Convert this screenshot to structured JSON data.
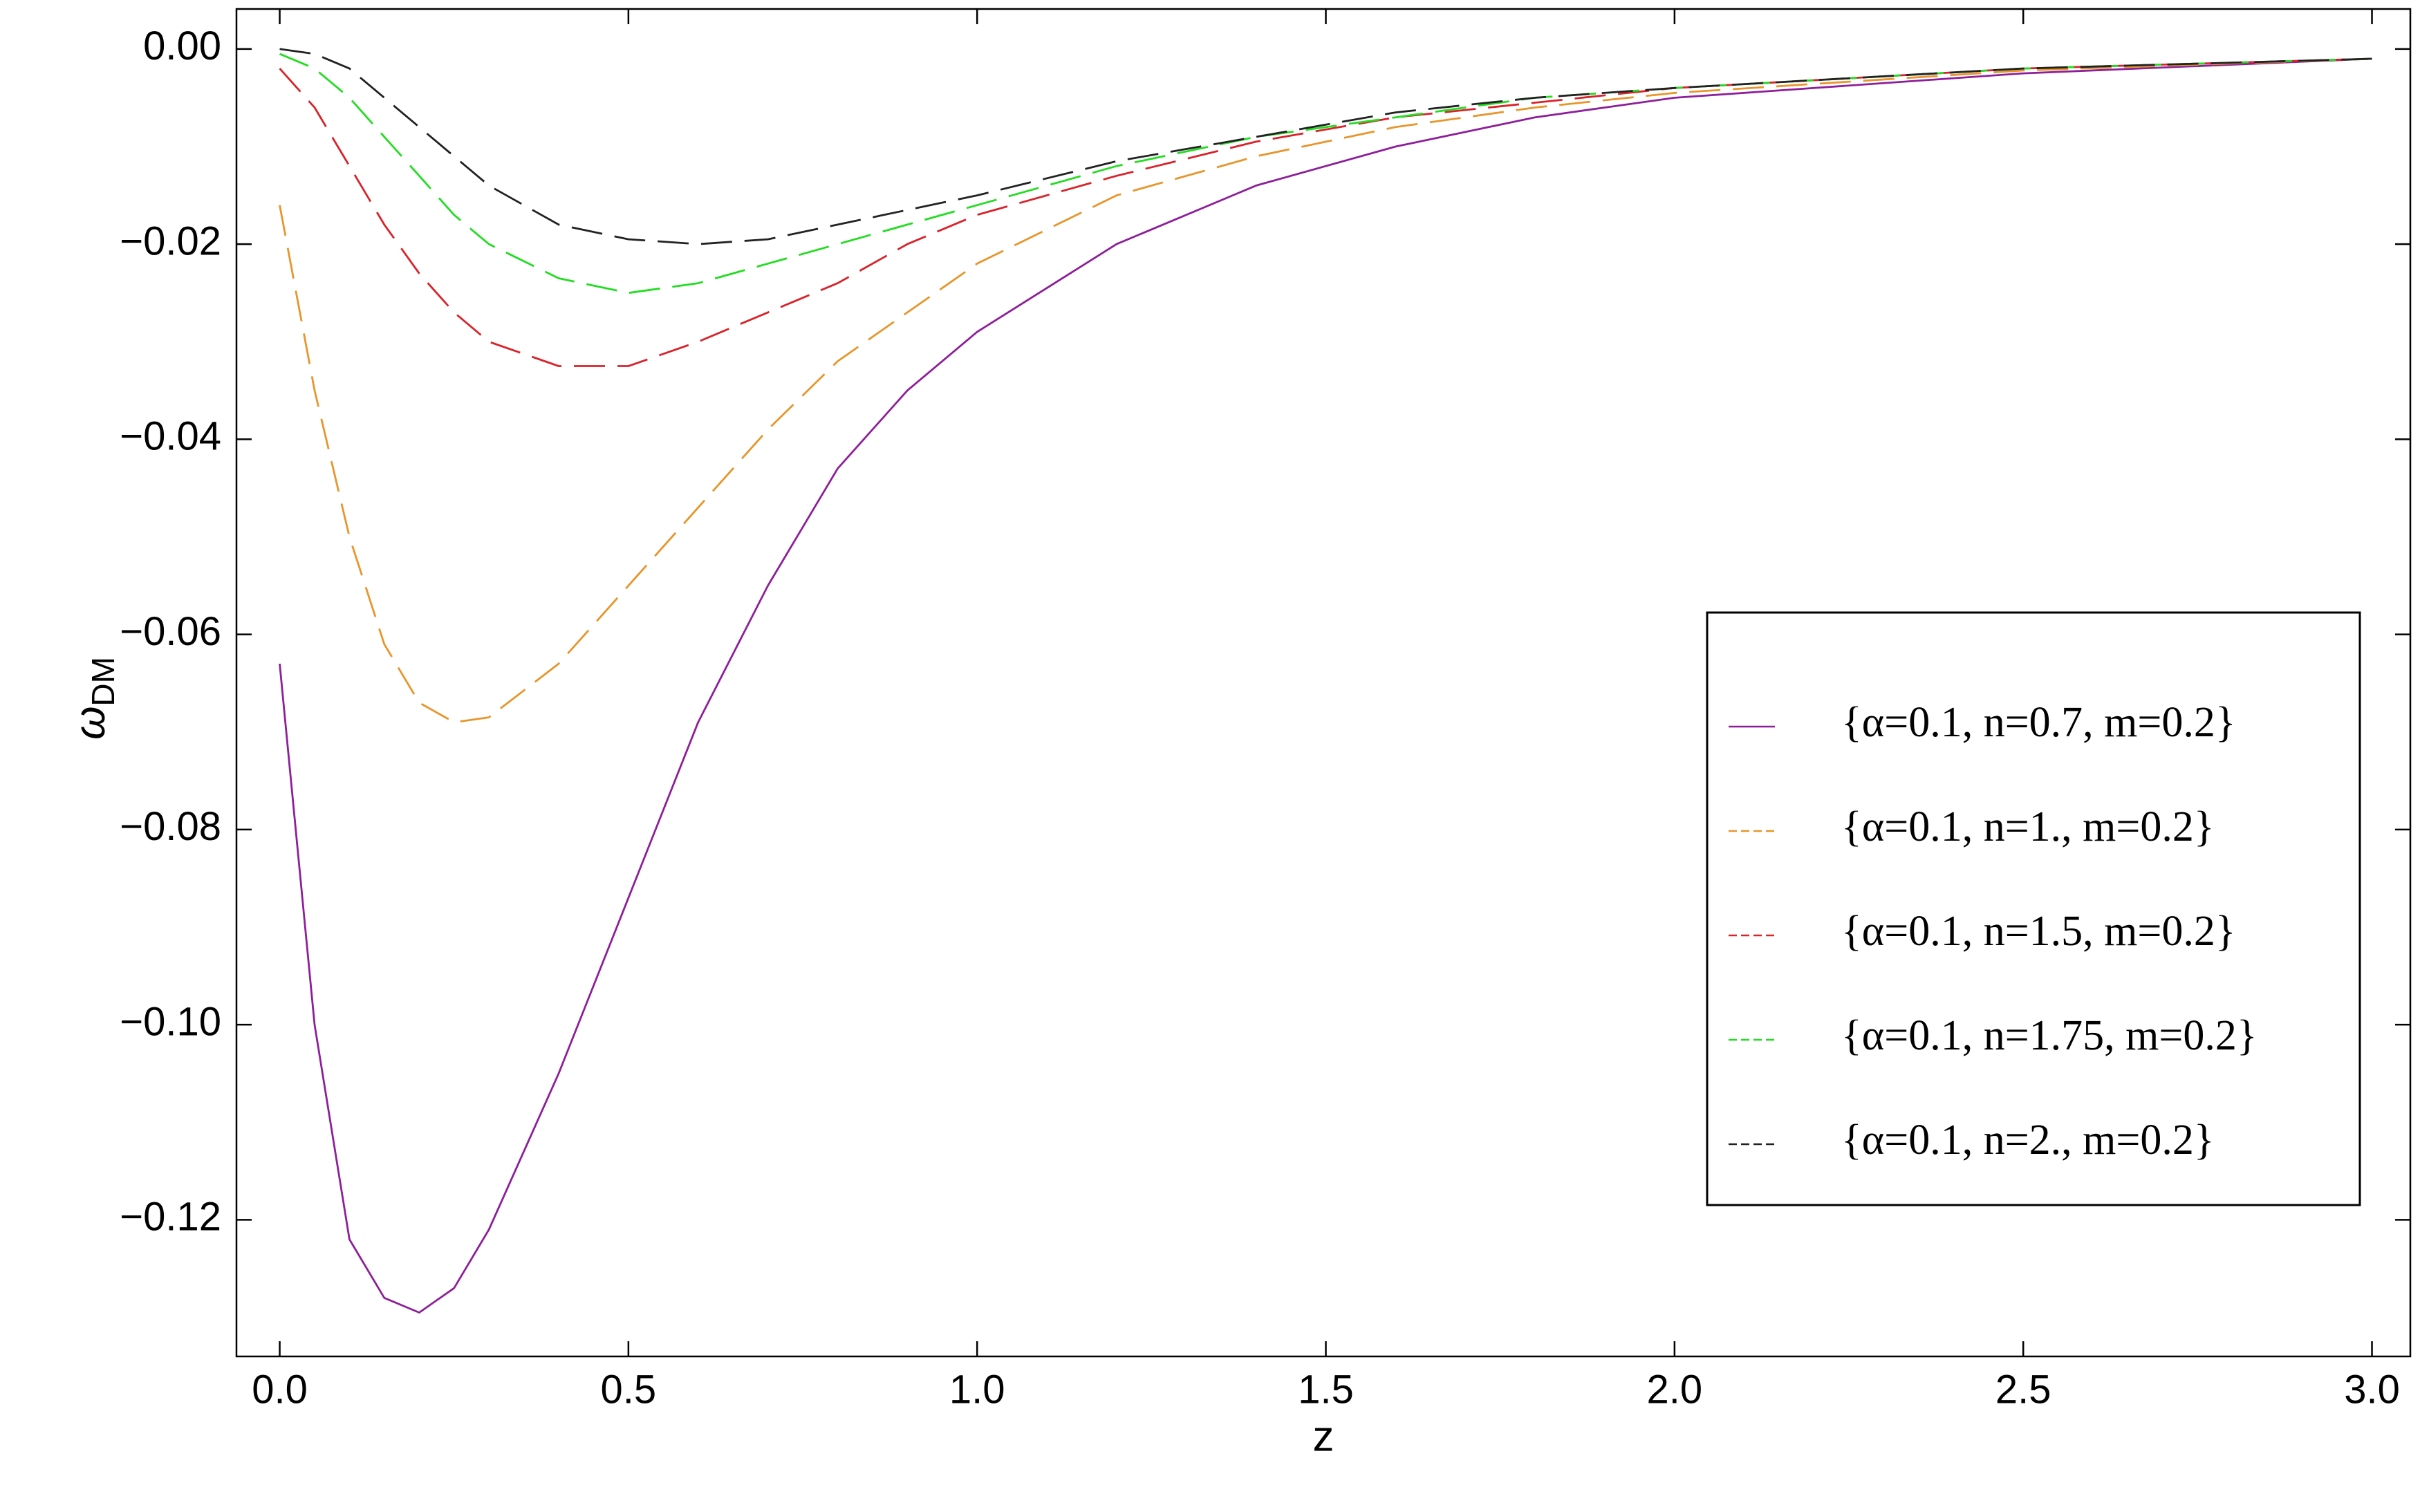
{
  "chart_data": {
    "type": "line",
    "xlabel": "z",
    "ylabel": "ω",
    "ylabel_subscript": "DM",
    "x": [
      0,
      0.05,
      0.1,
      0.15,
      0.2,
      0.25,
      0.3,
      0.4,
      0.5,
      0.6,
      0.7,
      0.8,
      0.9,
      1.0,
      1.2,
      1.4,
      1.6,
      1.8,
      2.0,
      2.5,
      3.0
    ],
    "series": [
      {
        "name": "{α=0.1, n=0.7, m=0.2}",
        "color": "#8e1f9a",
        "style": "solid",
        "values": [
          -0.063,
          -0.1,
          -0.122,
          -0.128,
          -0.1295,
          -0.127,
          -0.121,
          -0.105,
          -0.087,
          -0.069,
          -0.055,
          -0.043,
          -0.035,
          -0.029,
          -0.02,
          -0.014,
          -0.01,
          -0.007,
          -0.005,
          -0.0025,
          -0.001
        ]
      },
      {
        "name": "{α=0.1, n=1., m=0.2}",
        "color": "#e8952a",
        "style": "dashed",
        "values": [
          -0.016,
          -0.035,
          -0.05,
          -0.061,
          -0.067,
          -0.069,
          -0.0685,
          -0.063,
          -0.055,
          -0.047,
          -0.039,
          -0.032,
          -0.027,
          -0.022,
          -0.015,
          -0.011,
          -0.008,
          -0.006,
          -0.0045,
          -0.0022,
          -0.001
        ]
      },
      {
        "name": "{α=0.1, n=1.5, m=0.2}",
        "color": "#d9232a",
        "style": "dashed",
        "values": [
          -0.002,
          -0.006,
          -0.012,
          -0.018,
          -0.023,
          -0.027,
          -0.03,
          -0.0325,
          -0.0325,
          -0.03,
          -0.027,
          -0.024,
          -0.02,
          -0.017,
          -0.013,
          -0.0095,
          -0.007,
          -0.0055,
          -0.004,
          -0.002,
          -0.001
        ]
      },
      {
        "name": "{α=0.1, n=1.75, m=0.2}",
        "color": "#22dd22",
        "style": "dashed",
        "values": [
          -0.0005,
          -0.002,
          -0.005,
          -0.009,
          -0.013,
          -0.017,
          -0.02,
          -0.0235,
          -0.025,
          -0.024,
          -0.022,
          -0.02,
          -0.018,
          -0.016,
          -0.012,
          -0.009,
          -0.007,
          -0.005,
          -0.004,
          -0.002,
          -0.001
        ]
      },
      {
        "name": "{α=0.1, n=2., m=0.2}",
        "color": "#222222",
        "style": "dashed",
        "values": [
          0.0,
          -0.0005,
          -0.002,
          -0.005,
          -0.008,
          -0.011,
          -0.014,
          -0.018,
          -0.0195,
          -0.02,
          -0.0195,
          -0.018,
          -0.0165,
          -0.015,
          -0.0115,
          -0.009,
          -0.0065,
          -0.005,
          -0.004,
          -0.002,
          -0.001
        ]
      }
    ],
    "xlim": [
      -0.062,
      3.055
    ],
    "ylim": [
      -0.134,
      0.0041
    ],
    "xticks": [
      {
        "value": 0,
        "label": "0.0"
      },
      {
        "value": 0.5,
        "label": "0.5"
      },
      {
        "value": 1,
        "label": "1.0"
      },
      {
        "value": 1.5,
        "label": "1.5"
      },
      {
        "value": 2,
        "label": "2.0"
      },
      {
        "value": 2.5,
        "label": "2.5"
      },
      {
        "value": 3,
        "label": "3.0"
      }
    ],
    "yticks": [
      {
        "value": 0,
        "label": "0.00"
      },
      {
        "value": -0.02,
        "label": "−0.02"
      },
      {
        "value": -0.04,
        "label": "−0.04"
      },
      {
        "value": -0.06,
        "label": "−0.06"
      },
      {
        "value": -0.08,
        "label": "−0.08"
      },
      {
        "value": -0.1,
        "label": "−0.10"
      },
      {
        "value": -0.12,
        "label": "−0.12"
      }
    ],
    "grid": false,
    "legend": "right"
  }
}
